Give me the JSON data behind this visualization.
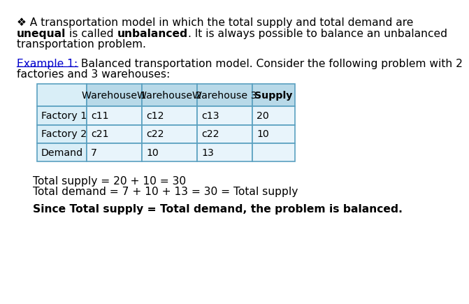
{
  "title_bullet": "❖",
  "title_line1": " A transportation model in which the total supply and total demand are",
  "title_line2_parts": [
    {
      "text": "unequal",
      "bold": true
    },
    {
      "text": " is called ",
      "bold": false
    },
    {
      "text": "unbalanced",
      "bold": true
    },
    {
      "text": ". It is always possible to balance an unbalanced",
      "bold": false
    }
  ],
  "title_line3": "transportation problem.",
  "example_label": "Example 1:",
  "example_text": " Balanced transportation model. Consider the following problem with 2",
  "example_line2": "factories and 3 warehouses:",
  "table_header": [
    "",
    "Warehouse 1",
    "Warehouse 2",
    "Warehouse 3",
    "Supply"
  ],
  "table_rows": [
    [
      "Factory 1",
      "c11",
      "c12",
      "c13",
      "20"
    ],
    [
      "Factory 2",
      "c21",
      "c22",
      "c22",
      "10"
    ],
    [
      "Demand",
      "7",
      "10",
      "13",
      ""
    ]
  ],
  "header_bg": "#b8d9e8",
  "cell_bg_left": "#d9eef7",
  "cell_bg_right": "#e8f4fb",
  "summary_line1": "Total supply = 20 + 10 = 30",
  "summary_line2": "Total demand = 7 + 10 + 13 = 30 = Total supply",
  "summary_line3": "Since Total supply = Total demand, the problem is balanced.",
  "bg_color": "#ffffff",
  "text_color": "#000000",
  "example_link_color": "#0000cc",
  "border_color": "#5aa0c0"
}
